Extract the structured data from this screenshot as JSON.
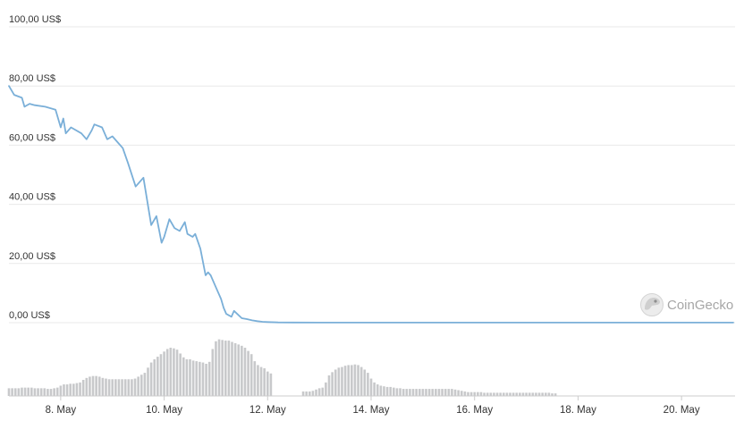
{
  "chart_data": {
    "type": "line",
    "y_axis": {
      "ticks": [
        {
          "value": 0,
          "label": "0,00 US$"
        },
        {
          "value": 20,
          "label": "20,00 US$"
        },
        {
          "value": 40,
          "label": "40,00 US$"
        },
        {
          "value": 60,
          "label": "60,00 US$"
        },
        {
          "value": 80,
          "label": "80,00 US$"
        },
        {
          "value": 100,
          "label": "100,00 US$"
        }
      ],
      "ylim": [
        0,
        100
      ]
    },
    "x_axis": {
      "ticks": [
        {
          "day": 8,
          "label": "8. May"
        },
        {
          "day": 10,
          "label": "10. May"
        },
        {
          "day": 12,
          "label": "12. May"
        },
        {
          "day": 14,
          "label": "14. May"
        },
        {
          "day": 16,
          "label": "16. May"
        },
        {
          "day": 18,
          "label": "18. May"
        },
        {
          "day": 20,
          "label": "20. May"
        }
      ],
      "xlim": [
        7,
        21
      ]
    },
    "series": [
      {
        "x": [
          7.0,
          7.1,
          7.25,
          7.3,
          7.4,
          7.5,
          7.7,
          7.9,
          8.0,
          8.05,
          8.1,
          8.2,
          8.4,
          8.5,
          8.6,
          8.65,
          8.8,
          8.9,
          9.0,
          9.1,
          9.2,
          9.3,
          9.45,
          9.6,
          9.75,
          9.85,
          9.95,
          10.0,
          10.1,
          10.2,
          10.3,
          10.4,
          10.45,
          10.55,
          10.6,
          10.7,
          10.8,
          10.85,
          10.9,
          11.0,
          11.1,
          11.15,
          11.2,
          11.3,
          11.35,
          11.5,
          11.6,
          11.7,
          11.8,
          11.9,
          12.0,
          12.2,
          12.5,
          13.0,
          14.0,
          16.0,
          18.0,
          20.0,
          21.0
        ],
        "y": [
          80,
          77,
          76,
          73,
          74,
          73.5,
          73,
          72,
          66,
          69,
          64,
          66,
          64,
          62,
          65,
          67,
          66,
          62,
          63,
          61,
          59,
          54,
          46,
          49,
          33,
          36,
          27,
          29,
          35,
          32,
          31,
          34,
          30,
          29,
          30,
          25,
          16,
          17,
          16,
          12,
          8,
          5,
          3,
          2,
          4,
          1.5,
          1.2,
          0.8,
          0.5,
          0.3,
          0.2,
          0.1,
          0.05,
          0.03,
          0.02,
          0.02,
          0.02,
          0.02,
          0.02
        ],
        "color": "#7aafd8"
      }
    ],
    "volume": {
      "color": "#c8c9cb",
      "x_start": 7.0,
      "x_step": 0.0625,
      "values": [
        0.12,
        0.12,
        0.12,
        0.12,
        0.13,
        0.13,
        0.13,
        0.13,
        0.12,
        0.12,
        0.12,
        0.12,
        0.11,
        0.11,
        0.12,
        0.13,
        0.16,
        0.18,
        0.18,
        0.19,
        0.19,
        0.2,
        0.21,
        0.25,
        0.28,
        0.3,
        0.31,
        0.31,
        0.3,
        0.28,
        0.27,
        0.26,
        0.26,
        0.26,
        0.26,
        0.26,
        0.26,
        0.26,
        0.26,
        0.27,
        0.3,
        0.33,
        0.36,
        0.44,
        0.52,
        0.57,
        0.61,
        0.65,
        0.69,
        0.73,
        0.75,
        0.74,
        0.72,
        0.66,
        0.6,
        0.57,
        0.57,
        0.55,
        0.54,
        0.53,
        0.52,
        0.5,
        0.53,
        0.73,
        0.85,
        0.88,
        0.87,
        0.86,
        0.86,
        0.84,
        0.82,
        0.8,
        0.78,
        0.75,
        0.7,
        0.65,
        0.54,
        0.48,
        0.45,
        0.43,
        0.38,
        0.35,
        0.0,
        0.0,
        0.0,
        0.0,
        0.0,
        0.0,
        0.0,
        0.0,
        0.0,
        0.07,
        0.07,
        0.07,
        0.08,
        0.1,
        0.12,
        0.13,
        0.21,
        0.32,
        0.37,
        0.41,
        0.44,
        0.45,
        0.47,
        0.48,
        0.48,
        0.49,
        0.48,
        0.45,
        0.41,
        0.36,
        0.27,
        0.21,
        0.18,
        0.16,
        0.15,
        0.14,
        0.14,
        0.13,
        0.12,
        0.12,
        0.11,
        0.11,
        0.11,
        0.11,
        0.11,
        0.11,
        0.11,
        0.11,
        0.11,
        0.11,
        0.11,
        0.11,
        0.11,
        0.11,
        0.11,
        0.11,
        0.1,
        0.09,
        0.08,
        0.07,
        0.06,
        0.06,
        0.06,
        0.06,
        0.06,
        0.05,
        0.05,
        0.05,
        0.05,
        0.05,
        0.05,
        0.05,
        0.05,
        0.05,
        0.05,
        0.05,
        0.05,
        0.05,
        0.05,
        0.05,
        0.05,
        0.05,
        0.05,
        0.05,
        0.05,
        0.05,
        0.04,
        0.04
      ]
    },
    "grid": true,
    "legend": "none"
  },
  "watermark": {
    "text": "CoinGecko",
    "icon": "gecko-logo-icon"
  },
  "colors": {
    "line": "#7aafd8",
    "grid": "#e9e9e9",
    "volume": "#c8c9cb",
    "text": "#333333",
    "watermark": "#a6a6a6"
  }
}
